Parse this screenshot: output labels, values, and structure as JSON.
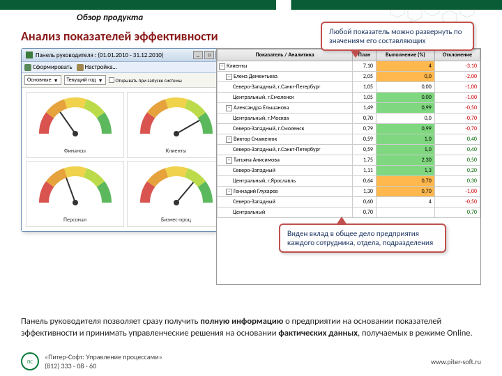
{
  "header": {
    "section_title": "Обзор продукта",
    "main_title": "Анализ показателей эффективности"
  },
  "window": {
    "title": "Панель руководителя : (01.01.2010 - 31.12.2010)",
    "toolbar": {
      "refresh": "Сформировать",
      "settings": "Настройка…"
    },
    "filter": {
      "main": "Основные",
      "period": "Текущий год",
      "checkbox": "Открывать при запуске системы"
    }
  },
  "gauges": [
    {
      "label": "Финансы",
      "needle": -35,
      "color": "#d9534f"
    },
    {
      "label": "Клиенты",
      "needle": 60,
      "color": "#5cb85c"
    },
    {
      "label": "Персонал",
      "needle": -20,
      "color": "#e6a23c"
    },
    {
      "label": "Бизнес-проц",
      "needle": 40,
      "color": "#5cb85c"
    }
  ],
  "gauge_style": {
    "arc_colors": [
      "#d9534f",
      "#e6a23c",
      "#f0d24d",
      "#bcdb4a",
      "#5cb85c"
    ],
    "bg": "#ffffff"
  },
  "table": {
    "columns": [
      "Показатель / Аналитика",
      "План",
      "Выполнение (%)",
      "Отклонение"
    ],
    "rows": [
      {
        "tree": 1,
        "exp": "-",
        "name": "Клиенты",
        "plan": "7,10",
        "exec": "4",
        "dev": "-3,10",
        "hl": "orange",
        "dev_c": "red"
      },
      {
        "tree": 2,
        "exp": "-",
        "name": "Елена Дементьева",
        "plan": "2,05",
        "exec": "0,0",
        "dev": "-2,00",
        "hl": "orange",
        "dev_c": "red"
      },
      {
        "tree": 3,
        "name": "Северо-Западный, г.Санкт-Петербург",
        "plan": "1,05",
        "exec": "0,00",
        "dev": "-1,00",
        "hl": "",
        "dev_c": "red"
      },
      {
        "tree": 3,
        "name": "Центральный, г.Смоленск",
        "plan": "1,05",
        "exec": "0,00",
        "dev": "-1,00",
        "hl": "green",
        "dev_c": "red"
      },
      {
        "tree": 2,
        "exp": "-",
        "name": "Александра Ельшанова",
        "plan": "1,49",
        "exec": "0,99",
        "dev": "-0,50",
        "hl": "green",
        "dev_c": "red"
      },
      {
        "tree": 3,
        "name": "Центральный, г.Москва",
        "plan": "0,70",
        "exec": "0,0",
        "dev": "-0,70",
        "hl": "",
        "dev_c": "red"
      },
      {
        "tree": 3,
        "name": "Северо-Западный, г.Смоленск",
        "plan": "0,79",
        "exec": "0,99",
        "dev": "-0,70",
        "hl": "green",
        "dev_c": "red"
      },
      {
        "tree": 2,
        "exp": "-",
        "name": "Виктор Смаженюк",
        "plan": "0,59",
        "exec": "1,0",
        "dev": "0,40",
        "hl": "green",
        "dev_c": "green"
      },
      {
        "tree": 3,
        "name": "Северо-Западный, г.Санкт-Петербург",
        "plan": "0,59",
        "exec": "1,0",
        "dev": "0,40",
        "hl": "green",
        "dev_c": "green"
      },
      {
        "tree": 2,
        "exp": "-",
        "name": "Татьяна Анисимова",
        "plan": "1,75",
        "exec": "2,30",
        "dev": "0,50",
        "hl": "green",
        "dev_c": "green"
      },
      {
        "tree": 3,
        "name": "Северо-Западный",
        "plan": "1,11",
        "exec": "1,3",
        "dev": "0,20",
        "hl": "green",
        "dev_c": "green"
      },
      {
        "tree": 3,
        "name": "Центральный, г.Ярославль",
        "plan": "0,64",
        "exec": "0,70",
        "dev": "0,30",
        "hl": "orange",
        "dev_c": "green"
      },
      {
        "tree": 2,
        "exp": "-",
        "name": "Геннадий Глухарев",
        "plan": "1,30",
        "exec": "0,70",
        "dev": "-1,00",
        "hl": "orange",
        "dev_c": "red"
      },
      {
        "tree": 3,
        "name": "Северо-Западный",
        "plan": "0,60",
        "exec": "4",
        "dev": "-0,50",
        "hl": "",
        "dev_c": "red"
      },
      {
        "tree": 3,
        "name": "Центральный",
        "plan": "0,70",
        "exec": "",
        "dev": "0,70",
        "hl": "",
        "dev_c": "green"
      }
    ]
  },
  "callouts": {
    "c1": "Любой показатель можно развернуть по значениям его составляющих",
    "c2": "Виден вклад в общее дело предприятия каждого сотрудника, отдела, подразделения"
  },
  "description": {
    "t1": "Панель руководителя позволяет сразу получить ",
    "b1": "полную информацию",
    "t2": " о предприятии на основании показателей эффективности и принимать управленческие решения на основании ",
    "b2": "фактических данных",
    "t3": ", получаемых в режиме Online."
  },
  "footer": {
    "product": "«Питер-Софт: Управление процессами»",
    "phone": "(812) 333 - 08 - 60",
    "url": "www.piter-soft.ru",
    "logo": "ПС"
  }
}
